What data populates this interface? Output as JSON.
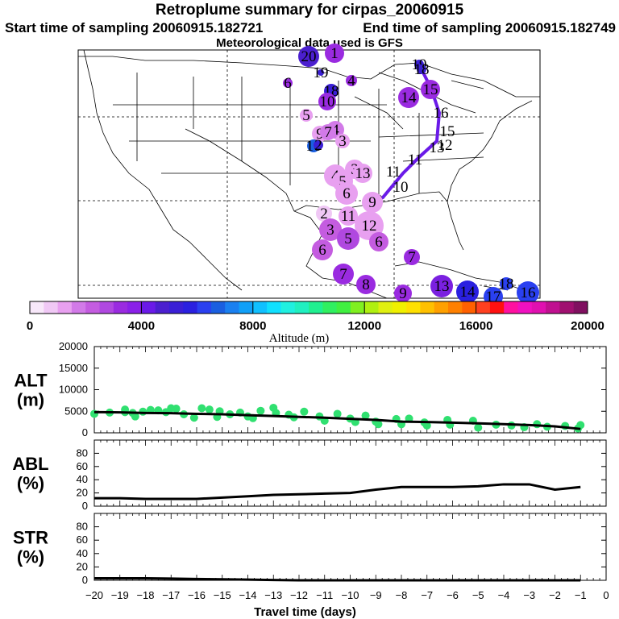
{
  "header": {
    "title": "Retroplume summary for cirpas_20060915",
    "start": "Start time of sampling 20060915.182721",
    "end": "End time of sampling 20060915.182749",
    "met": "Meteorological data used is GFS"
  },
  "map": {
    "labels": [
      {
        "t": "20",
        "c": "#4b1fcf"
      },
      {
        "t": "1",
        "c": "#9a2be0"
      },
      {
        "t": "19",
        "c": "#3a1fd6"
      },
      {
        "t": "4",
        "c": "#9a2be0"
      },
      {
        "t": "6",
        "c": "#9a2be0"
      },
      {
        "t": "18",
        "c": "#3a1fd6"
      },
      {
        "t": "10",
        "c": "#9a2be0"
      },
      {
        "t": "5",
        "c": "#e8a0f0"
      },
      {
        "t": "9",
        "c": "#e8a0f0"
      },
      {
        "t": "4",
        "c": "#d27ae8"
      },
      {
        "t": "7",
        "c": "#d27ae8"
      },
      {
        "t": "3",
        "c": "#e8a0f0"
      },
      {
        "t": "16",
        "c": "#1a5fe0"
      },
      {
        "t": "2",
        "c": "#3a1fd6"
      },
      {
        "t": "19",
        "c": "#3a1fd6"
      },
      {
        "t": "18",
        "c": "#3a1fd6"
      },
      {
        "t": "14",
        "c": "#9a2be0"
      },
      {
        "t": "15",
        "c": "#9a2be0"
      },
      {
        "t": "16",
        "c": "#ffffff"
      },
      {
        "t": "15",
        "c": "#ffffff"
      },
      {
        "t": "13",
        "c": "#ffffff"
      },
      {
        "t": "12",
        "c": "#ffffff"
      },
      {
        "t": "11",
        "c": "#ffffff"
      },
      {
        "t": "11",
        "c": "#ffffff"
      },
      {
        "t": "10",
        "c": "#ffffff"
      },
      {
        "t": "9",
        "c": "#ffffff"
      },
      {
        "t": "4",
        "c": "#e8a0f0"
      },
      {
        "t": "5",
        "c": "#e8a0f0"
      },
      {
        "t": "3",
        "c": "#e8a0f0"
      },
      {
        "t": "13",
        "c": "#e8a0f0"
      },
      {
        "t": "6",
        "c": "#e8a0f0"
      },
      {
        "t": "9",
        "c": "#e8a0f0"
      },
      {
        "t": "2",
        "c": "#f0c8f5"
      },
      {
        "t": "11",
        "c": "#e8a0f0"
      },
      {
        "t": "12",
        "c": "#e8a0f0"
      },
      {
        "t": "3",
        "c": "#c45ce0"
      },
      {
        "t": "5",
        "c": "#b048e0"
      },
      {
        "t": "6",
        "c": "#c45ce0"
      },
      {
        "t": "6",
        "c": "#c45ce0"
      },
      {
        "t": "7",
        "c": "#9a2be0"
      },
      {
        "t": "7",
        "c": "#9a2be0"
      },
      {
        "t": "8",
        "c": "#9a2be0"
      },
      {
        "t": "9",
        "c": "#9a2be0"
      },
      {
        "t": "13",
        "c": "#7a20e0"
      },
      {
        "t": "14",
        "c": "#2a20e0"
      },
      {
        "t": "17",
        "c": "#2a40f0"
      },
      {
        "t": "18",
        "c": "#2a40f0"
      },
      {
        "t": "16",
        "c": "#2a40f0"
      }
    ]
  },
  "colorbar": {
    "colors": [
      "#f8e8fa",
      "#f0c8f5",
      "#e8a0f0",
      "#d27ae8",
      "#c45ce0",
      "#b048e0",
      "#9a2be0",
      "#8a20e8",
      "#6a1ae8",
      "#4b1fcf",
      "#3a1fd6",
      "#2a20e0",
      "#2a40f0",
      "#1a5fe0",
      "#1a80f0",
      "#10a0f8",
      "#10c0ff",
      "#10e0ff",
      "#20f0e0",
      "#20f0c0",
      "#20f090",
      "#30f060",
      "#40f040",
      "#80f020",
      "#b0f010",
      "#e0f010",
      "#f0f000",
      "#ffe000",
      "#ffc000",
      "#ffa000",
      "#ff8000",
      "#ff6000",
      "#ff4020",
      "#ff1010",
      "#ff10a0",
      "#f010c0",
      "#e010b0",
      "#c01090",
      "#a01070",
      "#801060"
    ],
    "ticks": [
      "0",
      "4000",
      "8000",
      "12000",
      "16000",
      "20000"
    ],
    "label": "Altitude (m)"
  },
  "chart_data": [
    {
      "type": "scatter",
      "name": "ALT",
      "ylabel_line1": "ALT",
      "ylabel_line2": "(m)",
      "ylim": [
        0,
        20000
      ],
      "xlim": [
        -20,
        0
      ],
      "yticks": [
        "0",
        "5000",
        "10000",
        "15000",
        "20000"
      ],
      "points_x": [
        -20,
        -19.4,
        -18.8,
        -18.8,
        -18.5,
        -18.4,
        -18.1,
        -17.8,
        -17.5,
        -17.2,
        -17,
        -16.8,
        -16.5,
        -16.1,
        -15.8,
        -15.5,
        -15.2,
        -15.1,
        -14.7,
        -14.3,
        -14,
        -13.8,
        -13.5,
        -13,
        -12.9,
        -12.4,
        -12.2,
        -11.8,
        -11.2,
        -11,
        -10.5,
        -10,
        -9.8,
        -9.4,
        -9,
        -8.9,
        -8.2,
        -8,
        -7.7,
        -7.1,
        -7,
        -6.2,
        -6.1,
        -5.2,
        -5,
        -4.3,
        -3.7,
        -3.2,
        -2.7,
        -2.3,
        -1.6,
        -1.1,
        -1
      ],
      "points_y": [
        4400,
        4700,
        4800,
        5400,
        4600,
        3800,
        4900,
        5300,
        5200,
        4800,
        5700,
        5600,
        4300,
        3500,
        5700,
        5400,
        3700,
        5000,
        4300,
        4700,
        3800,
        3400,
        5100,
        5800,
        4600,
        4200,
        3600,
        4900,
        3800,
        2800,
        4400,
        3300,
        2500,
        4000,
        2600,
        2000,
        3200,
        2000,
        3300,
        2400,
        1700,
        3000,
        1900,
        2800,
        1200,
        1900,
        1700,
        1300,
        2000,
        1400,
        1600,
        1000,
        1800
      ],
      "mean_x": [
        -20,
        -19,
        -18,
        -17,
        -16,
        -15,
        -14,
        -13,
        -12,
        -11,
        -10,
        -9,
        -8,
        -7,
        -6,
        -5,
        -4,
        -3,
        -2,
        -1
      ],
      "mean_y": [
        4800,
        4750,
        4600,
        4550,
        4400,
        4300,
        4100,
        3900,
        3700,
        3500,
        3250,
        3000,
        2600,
        2500,
        2350,
        2200,
        2000,
        1800,
        1500,
        900
      ]
    },
    {
      "type": "line",
      "name": "ABL",
      "ylabel_line1": "ABL",
      "ylabel_line2": "(%)",
      "ylim": [
        0,
        100
      ],
      "xlim": [
        -20,
        0
      ],
      "yticks": [
        "0",
        "20",
        "40",
        "60",
        "80"
      ],
      "x": [
        -20,
        -19,
        -18,
        -17,
        -16,
        -15,
        -14,
        -13,
        -12,
        -11,
        -10,
        -9,
        -8,
        -7,
        -6,
        -5,
        -4,
        -3,
        -2,
        -1
      ],
      "y": [
        12,
        12,
        11,
        11,
        11,
        13,
        15,
        17,
        18,
        19,
        20,
        25,
        29,
        29,
        29,
        30,
        33,
        33,
        25,
        29
      ]
    },
    {
      "type": "line",
      "name": "STR",
      "ylabel_line1": "STR",
      "ylabel_line2": "(%)",
      "ylim": [
        0,
        100
      ],
      "xlim": [
        -20,
        0
      ],
      "yticks": [
        "0",
        "20",
        "40",
        "60",
        "80"
      ],
      "x": [
        -20,
        -19,
        -18,
        -17,
        -16,
        -15,
        -14,
        -13,
        -12,
        -11,
        -10,
        -9,
        -8,
        -7,
        -6,
        -5,
        -4,
        -3,
        -2,
        -1
      ],
      "y": [
        3,
        3,
        3,
        2.5,
        2,
        1.5,
        1,
        0.5,
        0,
        0,
        0,
        0,
        0,
        0,
        0,
        0,
        0,
        0,
        0,
        0
      ],
      "xticks": [
        "-20",
        "-19",
        "-18",
        "-17",
        "-16",
        "-15",
        "-14",
        "-13",
        "-12",
        "-11",
        "-10",
        "-9",
        "-8",
        "-7",
        "-6",
        "-5",
        "-4",
        "-3",
        "-2",
        "-1",
        "0"
      ],
      "xlabel": "Travel time (days)"
    }
  ]
}
